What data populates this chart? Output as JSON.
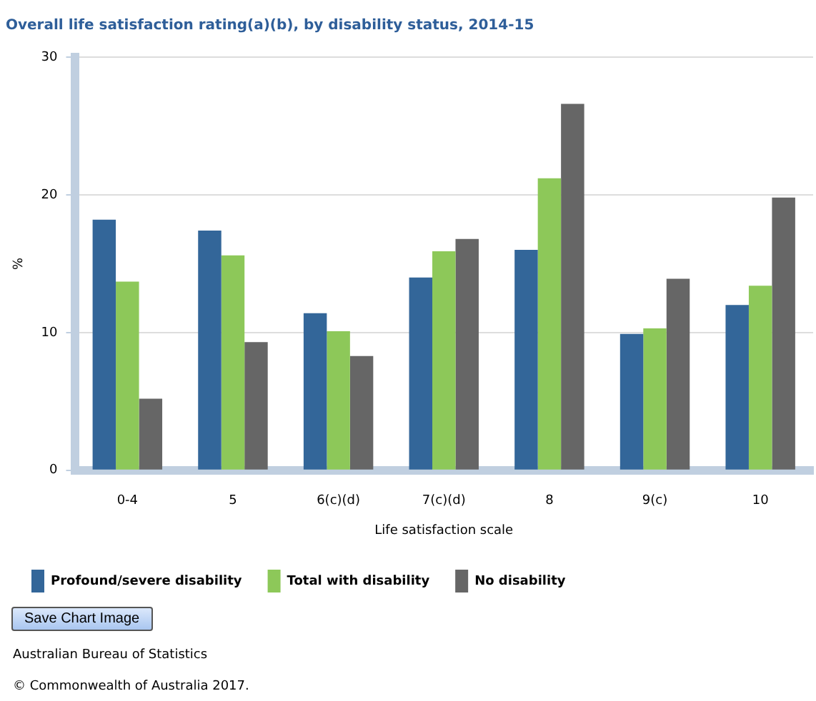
{
  "chart_data": {
    "type": "bar",
    "title": "Overall life satisfaction rating(a)(b), by disability status, 2014-15",
    "xlabel": "Life satisfaction scale",
    "ylabel": "%",
    "categories": [
      "0-4",
      "5",
      "6(c)(d)",
      "7(c)(d)",
      "8",
      "9(c)",
      "10"
    ],
    "series": [
      {
        "name": "Profound/severe disability",
        "color": "#336699",
        "values": [
          18.2,
          17.4,
          11.4,
          14.0,
          16.0,
          9.9,
          12.0
        ]
      },
      {
        "name": "Total with disability",
        "color": "#8dc859",
        "values": [
          13.7,
          15.6,
          10.1,
          15.9,
          21.2,
          10.3,
          13.4
        ]
      },
      {
        "name": "No disability",
        "color": "#666666",
        "values": [
          5.2,
          9.3,
          8.3,
          16.8,
          26.6,
          13.9,
          19.8
        ]
      }
    ],
    "ylim": [
      0,
      30
    ],
    "yticks": [
      0,
      10,
      20,
      30
    ],
    "grid": "y",
    "legend": "bottom",
    "annotations": [
      "Save Chart Image",
      "Australian Bureau of Statistics",
      "© Commonwealth of Australia 2017."
    ]
  }
}
